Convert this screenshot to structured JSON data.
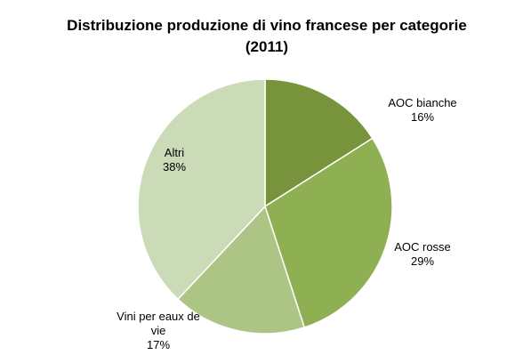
{
  "chart_data": {
    "type": "pie",
    "title": "Distribuzione produzione di vino francese per categorie",
    "subtitle": "(2011)",
    "slices": [
      {
        "label": "AOC bianche",
        "value": 16,
        "value_label": "16%",
        "color": "#77933c"
      },
      {
        "label": "AOC rosse",
        "value": 29,
        "value_label": "29%",
        "color": "#8fb052"
      },
      {
        "label": "Vini per eaux de vie",
        "label_lines": [
          "Vini per eaux de",
          "vie"
        ],
        "value": 17,
        "value_label": "17%",
        "color": "#adc584"
      },
      {
        "label": "Altri",
        "value": 38,
        "value_label": "38%",
        "color": "#ccdbb7"
      }
    ],
    "start": "top",
    "direction": "clockwise",
    "legend": "none",
    "labels": "outside-with-percent"
  }
}
